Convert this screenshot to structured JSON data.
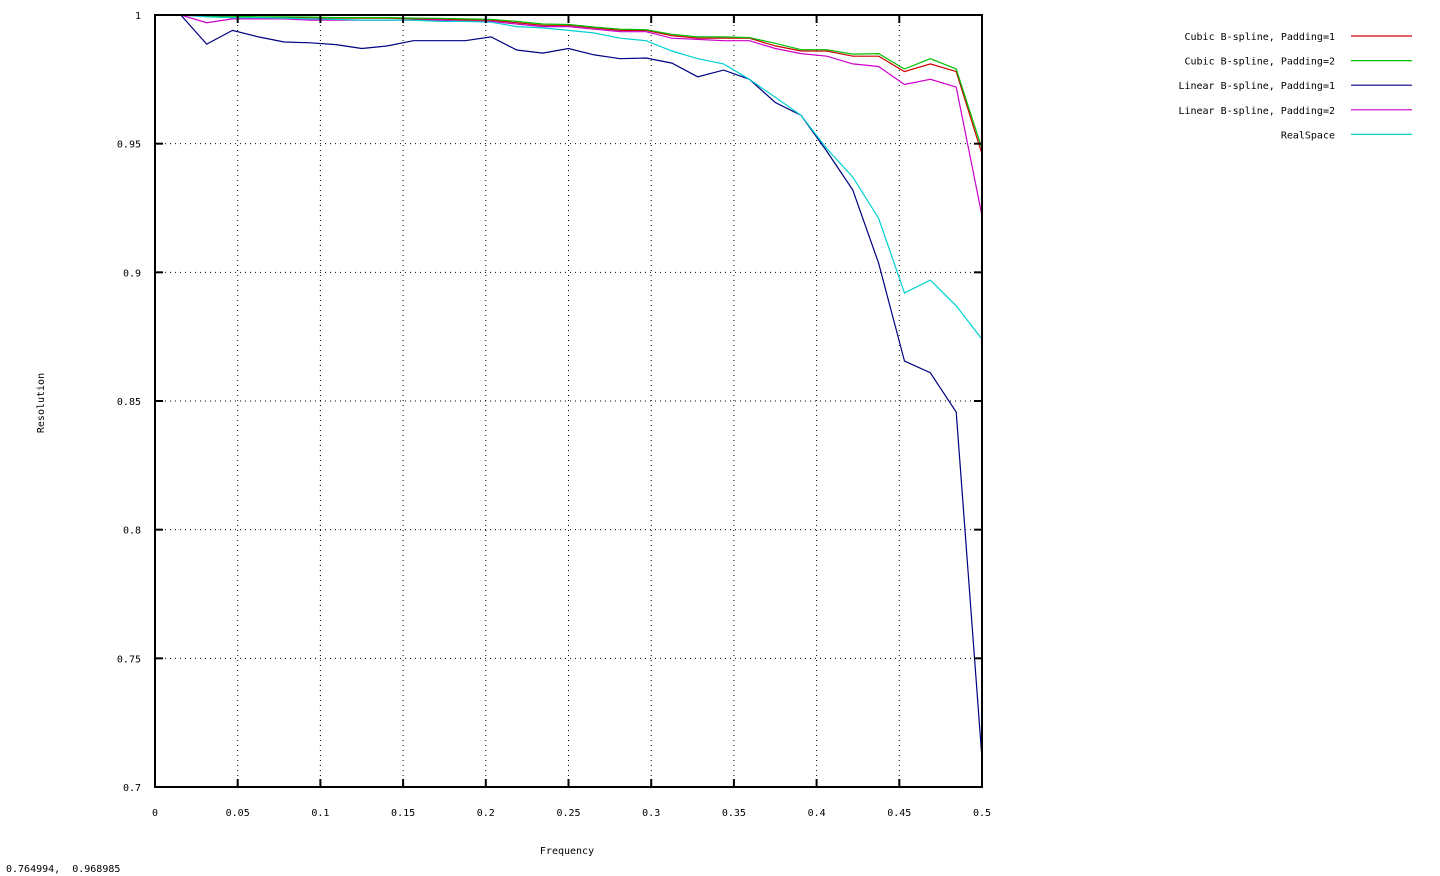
{
  "status_readout": "0.764994,  0.968985",
  "chart_data": {
    "type": "line",
    "title": "",
    "xlabel": "Frequency",
    "ylabel": "Resolution",
    "xlim": [
      0,
      0.5
    ],
    "ylim": [
      0.7,
      1
    ],
    "x_ticks": [
      "0",
      "0.05",
      "0.1",
      "0.15",
      "0.2",
      "0.25",
      "0.3",
      "0.35",
      "0.4",
      "0.45",
      "0.5"
    ],
    "y_ticks": [
      "0.7",
      "0.75",
      "0.8",
      "0.85",
      "0.9",
      "0.95",
      "1"
    ],
    "grid": true,
    "legend_position": "top-right (outside plot)",
    "x": [
      0.015625,
      0.03125,
      0.046875,
      0.0625,
      0.078125,
      0.09375,
      0.109375,
      0.125,
      0.140625,
      0.15625,
      0.171875,
      0.1875,
      0.203125,
      0.21875,
      0.234375,
      0.25,
      0.265625,
      0.28125,
      0.296875,
      0.3125,
      0.328125,
      0.34375,
      0.359375,
      0.375,
      0.390625,
      0.40625,
      0.421875,
      0.4375,
      0.453125,
      0.46875,
      0.484375,
      0.5
    ],
    "series": [
      {
        "name": "Cubic B-spline, Padding=1",
        "color": "#cc0000",
        "values": [
          1.0,
          0.9995,
          0.999,
          0.999,
          0.999,
          0.999,
          0.9988,
          0.9988,
          0.9988,
          0.9985,
          0.9985,
          0.998,
          0.998,
          0.997,
          0.996,
          0.996,
          0.995,
          0.994,
          0.994,
          0.992,
          0.991,
          0.991,
          0.991,
          0.988,
          0.986,
          0.986,
          0.984,
          0.984,
          0.978,
          0.981,
          0.978,
          0.946
        ]
      },
      {
        "name": "Cubic B-spline, Padding=2",
        "color": "#00c000",
        "values": [
          1.0,
          0.9997,
          0.9995,
          0.9993,
          0.9993,
          0.9992,
          0.999,
          0.999,
          0.999,
          0.9988,
          0.9987,
          0.9985,
          0.9983,
          0.9975,
          0.9965,
          0.9963,
          0.9953,
          0.9945,
          0.9943,
          0.9925,
          0.9915,
          0.9915,
          0.9912,
          0.989,
          0.9865,
          0.9865,
          0.9848,
          0.985,
          0.979,
          0.983,
          0.979,
          0.948
        ]
      },
      {
        "name": "Linear B-spline, Padding=1",
        "color": "#000080",
        "values": [
          1.0,
          0.9887,
          0.994,
          0.9915,
          0.9895,
          0.9892,
          0.9885,
          0.987,
          0.988,
          0.99,
          0.99,
          0.99,
          0.9915,
          0.9864,
          0.9852,
          0.987,
          0.9845,
          0.983,
          0.9833,
          0.9813,
          0.976,
          0.9786,
          0.975,
          0.966,
          0.961,
          0.947,
          0.932,
          0.9036,
          0.8655,
          0.861,
          0.8457,
          0.711
        ]
      },
      {
        "name": "Linear B-spline, Padding=2",
        "color": "#cc00cc",
        "values": [
          1.0,
          0.997,
          0.9985,
          0.9985,
          0.9985,
          0.998,
          0.998,
          0.998,
          0.998,
          0.998,
          0.998,
          0.9975,
          0.9975,
          0.9965,
          0.9955,
          0.9955,
          0.9945,
          0.9935,
          0.9935,
          0.991,
          0.9905,
          0.99,
          0.99,
          0.987,
          0.985,
          0.984,
          0.981,
          0.98,
          0.973,
          0.975,
          0.972,
          0.922
        ]
      },
      {
        "name": "RealSpace",
        "color": "#00d0d0",
        "values": [
          1.0,
          0.9993,
          0.999,
          0.999,
          0.9988,
          0.9985,
          0.9983,
          0.998,
          0.998,
          0.998,
          0.9975,
          0.9975,
          0.9972,
          0.9955,
          0.995,
          0.994,
          0.993,
          0.991,
          0.99,
          0.986,
          0.983,
          0.981,
          0.975,
          0.968,
          0.961,
          0.948,
          0.937,
          0.921,
          0.892,
          0.897,
          0.887,
          0.874
        ]
      }
    ]
  }
}
